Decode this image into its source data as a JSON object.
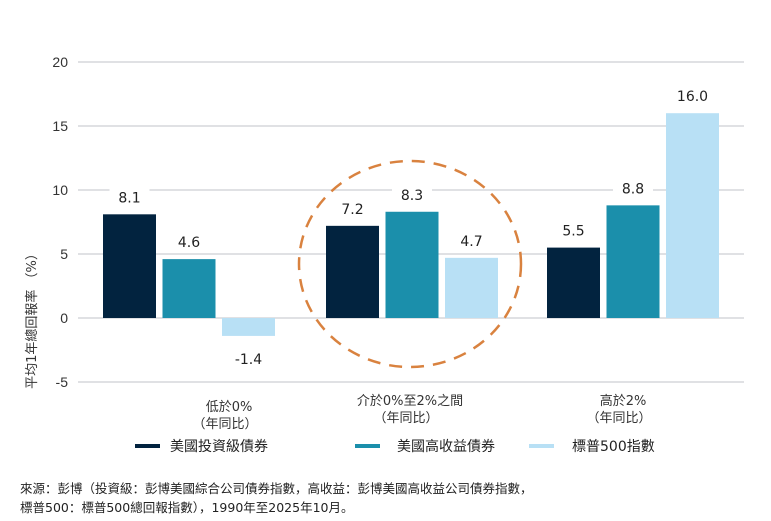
{
  "chart_data": {
    "type": "bar",
    "ylabel": "平均1年總回報率 （%）",
    "ylim": [
      -5,
      20
    ],
    "yticks": [
      20,
      15,
      10,
      5,
      0,
      -5
    ],
    "ytick_labels": [
      "20",
      "15",
      "10",
      "5",
      "0",
      "-5"
    ],
    "grid": true,
    "categories": [
      {
        "line1": "低於0%",
        "line2": "（年同比）"
      },
      {
        "line1": "介於0%至2%之間",
        "line2": "（年同比）"
      },
      {
        "line1": "高於2%",
        "line2": "（年同比）"
      }
    ],
    "series": [
      {
        "name": "美國投資級債券",
        "color": "#02233f",
        "values": [
          8.1,
          7.2,
          5.5
        ],
        "labels": [
          "8.1",
          "7.2",
          "5.5"
        ]
      },
      {
        "name": "美國高收益債券",
        "color": "#1b8fab",
        "values": [
          4.6,
          8.3,
          8.8
        ],
        "labels": [
          "4.6",
          "8.3",
          "8.8"
        ]
      },
      {
        "name": "標普500指數",
        "color": "#b8e0f5",
        "values": [
          -1.4,
          4.7,
          16.0
        ],
        "labels": [
          "-1.4",
          "4.7",
          "16.0"
        ]
      }
    ],
    "legend_position": "bottom",
    "annotation": {
      "type": "dashed-circle",
      "target_category": 1,
      "color": "#d9823f"
    }
  },
  "source": {
    "line1": "來源：彭博（投資級：彭博美國綜合公司債券指數，高收益：彭博美國高收益公司債券指數，",
    "line2": "標普500：標普500總回報指數），1990年至2025年10月。"
  }
}
